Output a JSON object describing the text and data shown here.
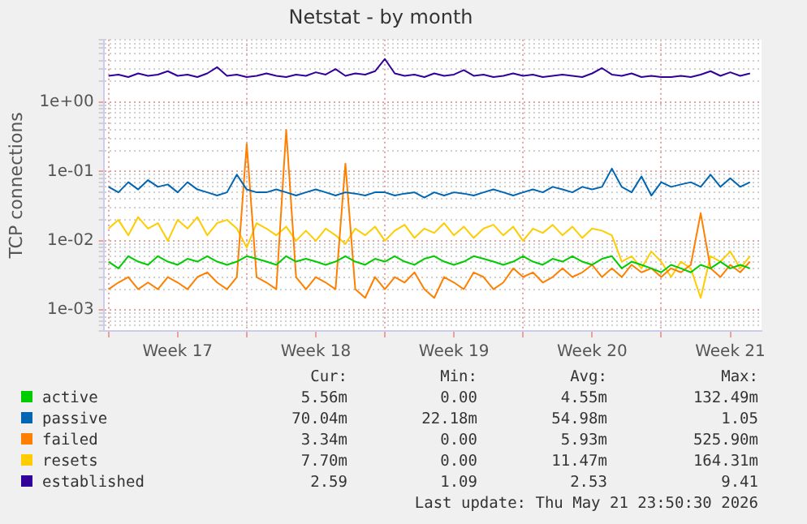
{
  "chart_data": {
    "type": "line",
    "title": "Netstat - by month",
    "ylabel": "TCP connections",
    "log": "y",
    "grid": true,
    "legend": "bottom",
    "marker": "none",
    "line_style": "solid",
    "x": [
      "2026-04-20T00:00",
      "2026-04-20T12:00",
      "2026-04-21T00:00",
      "2026-04-21T12:00",
      "2026-04-22T00:00",
      "2026-04-22T12:00",
      "2026-04-23T00:00",
      "2026-04-23T12:00",
      "2026-04-24T00:00",
      "2026-04-24T12:00",
      "2026-04-25T00:00",
      "2026-04-25T12:00",
      "2026-04-26T00:00",
      "2026-04-26T12:00",
      "2026-04-27T00:00",
      "2026-04-27T12:00",
      "2026-04-28T00:00",
      "2026-04-28T12:00",
      "2026-04-29T00:00",
      "2026-04-29T12:00",
      "2026-04-30T00:00",
      "2026-04-30T12:00",
      "2026-05-01T00:00",
      "2026-05-01T12:00",
      "2026-05-02T00:00",
      "2026-05-02T12:00",
      "2026-05-03T00:00",
      "2026-05-03T12:00",
      "2026-05-04T00:00",
      "2026-05-04T12:00",
      "2026-05-05T00:00",
      "2026-05-05T12:00",
      "2026-05-06T00:00",
      "2026-05-06T12:00",
      "2026-05-07T00:00",
      "2026-05-07T12:00",
      "2026-05-08T00:00",
      "2026-05-08T12:00",
      "2026-05-09T00:00",
      "2026-05-09T12:00",
      "2026-05-10T00:00",
      "2026-05-10T12:00",
      "2026-05-11T00:00",
      "2026-05-11T12:00",
      "2026-05-12T00:00",
      "2026-05-12T12:00",
      "2026-05-13T00:00",
      "2026-05-13T12:00",
      "2026-05-14T00:00",
      "2026-05-14T12:00",
      "2026-05-15T00:00",
      "2026-05-15T12:00",
      "2026-05-16T00:00",
      "2026-05-16T12:00",
      "2026-05-17T00:00",
      "2026-05-17T12:00",
      "2026-05-18T00:00",
      "2026-05-18T12:00",
      "2026-05-19T00:00",
      "2026-05-19T12:00",
      "2026-05-20T00:00",
      "2026-05-20T12:00",
      "2026-05-21T00:00",
      "2026-05-21T12:00",
      "2026-05-22T00:00",
      "2026-05-22T12:00"
    ],
    "xlim": [
      "2026-04-19T18:00",
      "2026-05-23T02:00"
    ],
    "xticks": [
      {
        "value": "2026-04-20T00:00",
        "label": null
      },
      {
        "value": "2026-04-23T12:00",
        "label": "Week 17"
      },
      {
        "value": "2026-04-27T00:00",
        "label": null
      },
      {
        "value": "2026-04-30T12:00",
        "label": "Week 18"
      },
      {
        "value": "2026-05-04T00:00",
        "label": null
      },
      {
        "value": "2026-05-07T12:00",
        "label": "Week 19"
      },
      {
        "value": "2026-05-11T00:00",
        "label": null
      },
      {
        "value": "2026-05-14T12:00",
        "label": "Week 20"
      },
      {
        "value": "2026-05-18T00:00",
        "label": null
      },
      {
        "value": "2026-05-21T12:00",
        "label": "Week 21"
      }
    ],
    "ylim": [
      0.0005,
      8
    ],
    "yticks": [
      {
        "value": 0.0005,
        "label": null
      },
      {
        "value": 0.0006,
        "label": null
      },
      {
        "value": 0.0007,
        "label": null
      },
      {
        "value": 0.0008,
        "label": null
      },
      {
        "value": 0.0009,
        "label": null
      },
      {
        "value": 0.001,
        "label": "1e-03"
      },
      {
        "value": 0.002,
        "label": null
      },
      {
        "value": 0.003,
        "label": null
      },
      {
        "value": 0.004,
        "label": null
      },
      {
        "value": 0.005,
        "label": null
      },
      {
        "value": 0.006,
        "label": null
      },
      {
        "value": 0.007,
        "label": null
      },
      {
        "value": 0.008,
        "label": null
      },
      {
        "value": 0.009,
        "label": null
      },
      {
        "value": 0.01,
        "label": "1e-02"
      },
      {
        "value": 0.02,
        "label": null
      },
      {
        "value": 0.03,
        "label": null
      },
      {
        "value": 0.04,
        "label": null
      },
      {
        "value": 0.05,
        "label": null
      },
      {
        "value": 0.06,
        "label": null
      },
      {
        "value": 0.07,
        "label": null
      },
      {
        "value": 0.08,
        "label": null
      },
      {
        "value": 0.09,
        "label": null
      },
      {
        "value": 0.1,
        "label": "1e-01"
      },
      {
        "value": 0.2,
        "label": null
      },
      {
        "value": 0.3,
        "label": null
      },
      {
        "value": 0.4,
        "label": null
      },
      {
        "value": 0.5,
        "label": null
      },
      {
        "value": 0.6,
        "label": null
      },
      {
        "value": 0.7,
        "label": null
      },
      {
        "value": 0.8,
        "label": null
      },
      {
        "value": 0.9,
        "label": null
      },
      {
        "value": 1,
        "label": "1e+00"
      },
      {
        "value": 2,
        "label": null
      },
      {
        "value": 3,
        "label": null
      },
      {
        "value": 4,
        "label": null
      },
      {
        "value": 5,
        "label": null
      },
      {
        "value": 6,
        "label": null
      },
      {
        "value": 7,
        "label": null
      },
      {
        "value": 8,
        "label": null
      }
    ],
    "series": [
      {
        "name": "active",
        "color": "#00cc00",
        "values": [
          0.005,
          0.004,
          0.006,
          0.005,
          0.0045,
          0.006,
          0.005,
          0.0045,
          0.0055,
          0.005,
          0.006,
          0.005,
          0.0045,
          0.005,
          0.006,
          0.0055,
          0.005,
          0.0045,
          0.006,
          0.005,
          0.0055,
          0.005,
          0.0045,
          0.005,
          0.006,
          0.005,
          0.0045,
          0.0055,
          0.005,
          0.006,
          0.005,
          0.0045,
          0.0055,
          0.006,
          0.005,
          0.0045,
          0.005,
          0.006,
          0.0055,
          0.005,
          0.0045,
          0.005,
          0.006,
          0.005,
          0.0045,
          0.0055,
          0.005,
          0.006,
          0.005,
          0.0045,
          0.0055,
          0.006,
          0.004,
          0.005,
          0.0045,
          0.004,
          0.0035,
          0.0045,
          0.004,
          0.0035,
          0.0045,
          0.004,
          0.005,
          0.004,
          0.0045,
          0.004
        ]
      },
      {
        "name": "passive",
        "color": "#0066b3",
        "values": [
          0.06,
          0.05,
          0.07,
          0.055,
          0.075,
          0.06,
          0.065,
          0.05,
          0.07,
          0.055,
          0.05,
          0.045,
          0.05,
          0.09,
          0.055,
          0.05,
          0.05,
          0.055,
          0.05,
          0.045,
          0.05,
          0.055,
          0.05,
          0.045,
          0.05,
          0.048,
          0.045,
          0.05,
          0.05,
          0.045,
          0.048,
          0.05,
          0.042,
          0.05,
          0.045,
          0.05,
          0.048,
          0.045,
          0.05,
          0.055,
          0.05,
          0.045,
          0.05,
          0.055,
          0.05,
          0.06,
          0.055,
          0.05,
          0.06,
          0.055,
          0.06,
          0.11,
          0.06,
          0.05,
          0.085,
          0.045,
          0.07,
          0.06,
          0.065,
          0.07,
          0.06,
          0.09,
          0.06,
          0.08,
          0.06,
          0.07
        ]
      },
      {
        "name": "failed",
        "color": "#ff8000",
        "values": [
          0.002,
          0.0025,
          0.003,
          0.002,
          0.0025,
          0.002,
          0.003,
          0.0025,
          0.002,
          0.003,
          0.0035,
          0.0025,
          0.002,
          0.003,
          0.25,
          0.003,
          0.0025,
          0.002,
          0.4,
          0.003,
          0.002,
          0.003,
          0.0025,
          0.002,
          0.13,
          0.002,
          0.0015,
          0.003,
          0.002,
          0.003,
          0.0025,
          0.0035,
          0.002,
          0.0015,
          0.003,
          0.0025,
          0.002,
          0.0035,
          0.003,
          0.002,
          0.0025,
          0.004,
          0.003,
          0.0035,
          0.0025,
          0.003,
          0.004,
          0.003,
          0.0035,
          0.0045,
          0.003,
          0.004,
          0.003,
          0.0045,
          0.0035,
          0.004,
          0.003,
          0.004,
          0.0035,
          0.0045,
          0.025,
          0.004,
          0.003,
          0.0045,
          0.0035,
          0.005
        ]
      },
      {
        "name": "resets",
        "color": "#ffcc00",
        "values": [
          0.015,
          0.02,
          0.012,
          0.022,
          0.015,
          0.018,
          0.01,
          0.02,
          0.015,
          0.022,
          0.012,
          0.018,
          0.02,
          0.015,
          0.008,
          0.018,
          0.015,
          0.012,
          0.016,
          0.01,
          0.014,
          0.01,
          0.015,
          0.012,
          0.009,
          0.015,
          0.012,
          0.016,
          0.01,
          0.014,
          0.017,
          0.011,
          0.015,
          0.013,
          0.018,
          0.012,
          0.016,
          0.011,
          0.015,
          0.017,
          0.012,
          0.016,
          0.01,
          0.015,
          0.013,
          0.017,
          0.012,
          0.016,
          0.011,
          0.015,
          0.014,
          0.012,
          0.005,
          0.006,
          0.004,
          0.007,
          0.005,
          0.003,
          0.005,
          0.004,
          0.0015,
          0.006,
          0.005,
          0.007,
          0.004,
          0.006
        ]
      },
      {
        "name": "established",
        "color": "#330099",
        "values": [
          2.4,
          2.5,
          2.3,
          2.6,
          2.4,
          2.5,
          2.8,
          2.4,
          2.5,
          2.3,
          2.6,
          3.2,
          2.4,
          2.5,
          2.3,
          2.4,
          2.6,
          2.4,
          2.3,
          2.5,
          2.4,
          2.7,
          2.5,
          3.0,
          2.4,
          2.6,
          2.5,
          2.8,
          4.2,
          2.6,
          2.4,
          2.5,
          2.3,
          2.6,
          2.4,
          2.5,
          2.9,
          2.4,
          2.5,
          2.3,
          2.4,
          2.6,
          2.4,
          2.5,
          2.3,
          2.4,
          2.5,
          2.4,
          2.3,
          2.6,
          3.1,
          2.5,
          2.4,
          2.6,
          2.3,
          2.4,
          2.3,
          2.3,
          2.4,
          2.3,
          2.5,
          2.8,
          2.4,
          2.7,
          2.4,
          2.6
        ]
      }
    ],
    "annotations": [
      "Cur:",
      "Min:",
      "Avg:",
      "Max:",
      "5.56m",
      "0.00",
      "4.55m",
      "132.49m",
      "70.04m",
      "22.18m",
      "54.98m",
      "1.05",
      "3.34m",
      "0.00",
      "5.93m",
      "525.90m",
      "7.70m",
      "0.00",
      "11.47m",
      "164.31m",
      "2.59",
      "1.09",
      "2.53",
      "9.41",
      "Last update: Thu May 21 23:50:30 2026"
    ]
  }
}
